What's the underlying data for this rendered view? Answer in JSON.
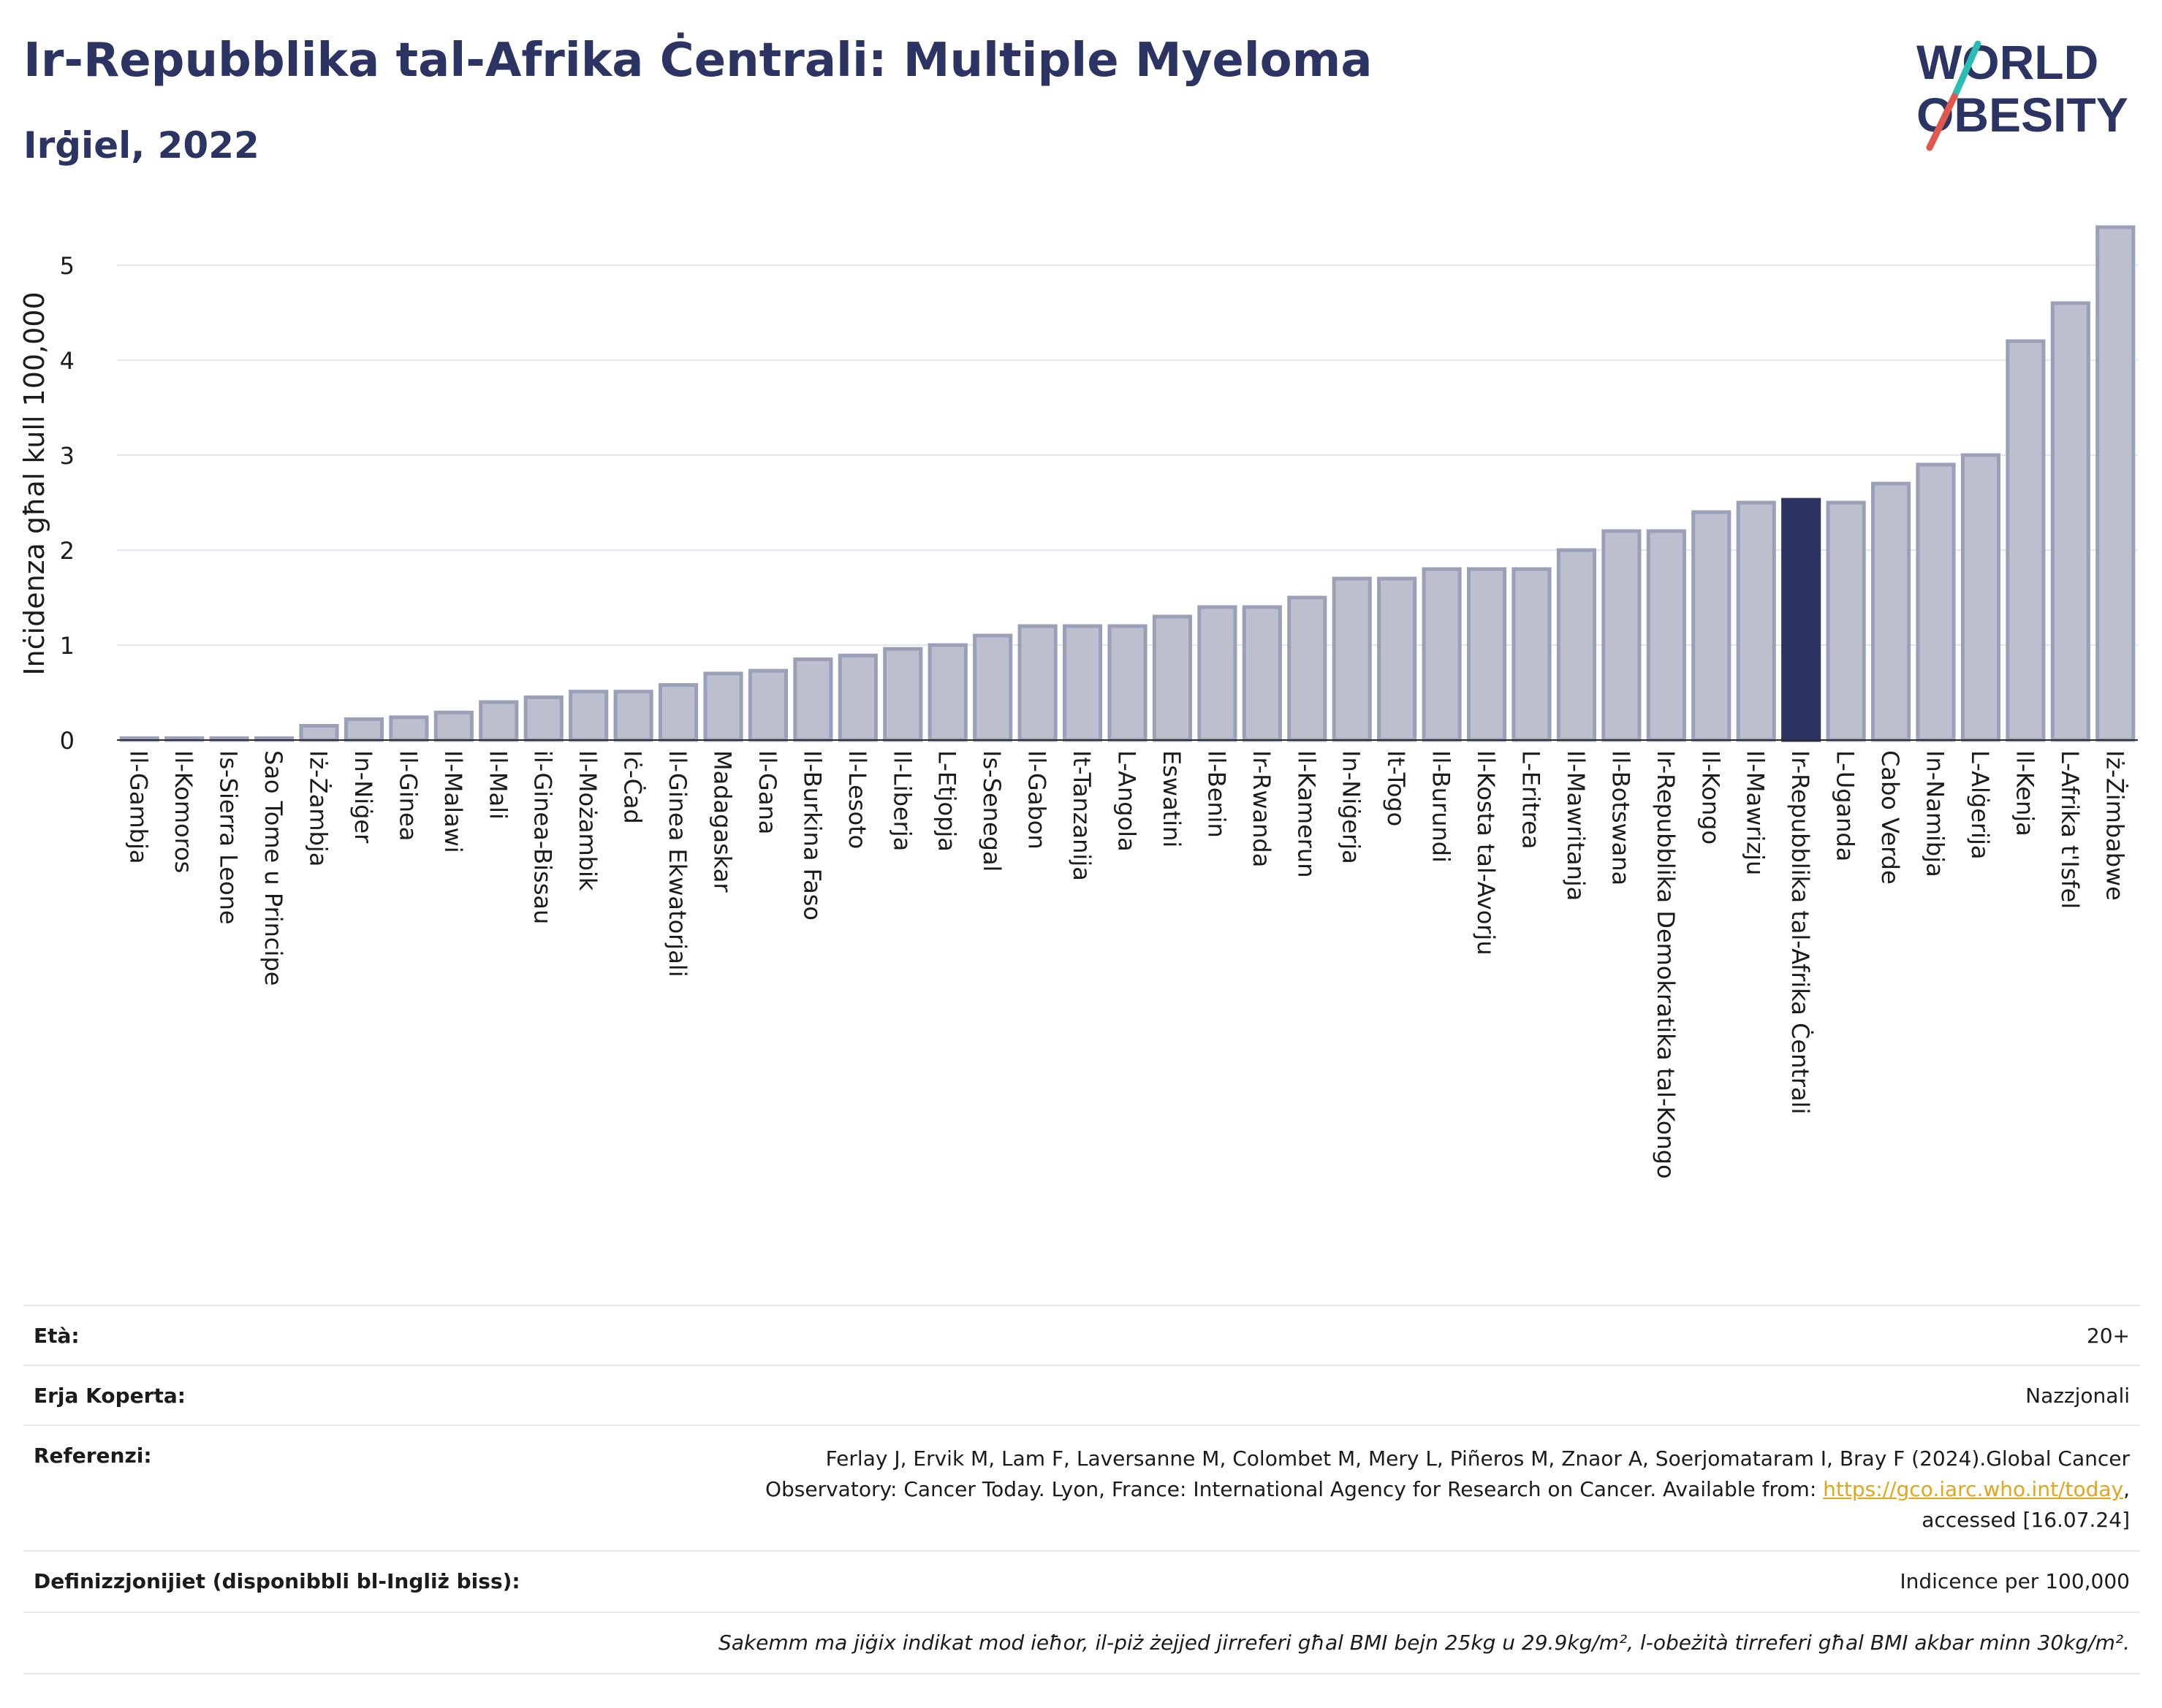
{
  "header": {
    "title": "Ir-Repubblika tal-Afrika Ċentrali: Multiple Myeloma",
    "subtitle": "Irġiel, 2022",
    "logo_line1": "WORLD",
    "logo_line2": "OBESITY"
  },
  "colors": {
    "title": "#2b3463",
    "bar_default": "#bcc0ce",
    "bar_border": "#9aa0b8",
    "bar_highlight": "#2b3463",
    "logo_teal": "#2bbdb5",
    "logo_red": "#e2574c",
    "link": "#e3a51a"
  },
  "chart_data": {
    "type": "bar",
    "title": "Ir-Repubblika tal-Afrika Ċentrali: Multiple Myeloma",
    "subtitle": "Irġiel, 2022",
    "ylabel": "Inċidenza għal kull 100,000",
    "xlabel": "",
    "ylim": [
      0,
      5.5
    ],
    "yticks": [
      0,
      1,
      2,
      3,
      4,
      5
    ],
    "grid": true,
    "highlight": "Ir-Repubblika tal-Afrika Ċentrali",
    "categories": [
      "Il-Gambja",
      "Il-Komoros",
      "Is-Sierra Leone",
      "Sao Tome u Principe",
      "Iż-Żambja",
      "In-Niġer",
      "Il-Ginea",
      "Il-Malawi",
      "Il-Mali",
      "il-Ginea-Bissau",
      "Il-Możambik",
      "Iċ-Ċad",
      "Il-Ginea Ekwatorjali",
      "Madagaskar",
      "Il-Gana",
      "Il-Burkina Faso",
      "Il-Lesoto",
      "Il-Liberja",
      "L-Etjopja",
      "Is-Senegal",
      "Il-Gabon",
      "It-Tanzanija",
      "L-Angola",
      "Eswatini",
      "Il-Benin",
      "Ir-Rwanda",
      "Il-Kamerun",
      "In-Niġerja",
      "It-Togo",
      "Il-Burundi",
      "Il-Kosta tal-Avorju",
      "L-Eritrea",
      "Il-Mawritanja",
      "Il-Botswana",
      "Ir-Repubblika Demokratika tal-Kongo",
      "Il-Kongo",
      "Il-Mawrizju",
      "Ir-Repubblika tal-Afrika Ċentrali",
      "L-Uganda",
      "Cabo Verde",
      "In-Namibja",
      "L-Alġerija",
      "Il-Kenja",
      "L-Afrika t'Isfel",
      "Iż-Żimbabwe"
    ],
    "values": [
      0.02,
      0.02,
      0.02,
      0.02,
      0.15,
      0.22,
      0.24,
      0.29,
      0.4,
      0.45,
      0.51,
      0.51,
      0.58,
      0.7,
      0.73,
      0.85,
      0.89,
      0.96,
      1.0,
      1.1,
      1.2,
      1.2,
      1.2,
      1.3,
      1.4,
      1.4,
      1.5,
      1.7,
      1.7,
      1.8,
      1.8,
      1.8,
      2.0,
      2.2,
      2.2,
      2.4,
      2.5,
      2.53,
      2.5,
      2.7,
      2.9,
      3.0,
      4.2,
      4.6,
      5.4
    ]
  },
  "info": {
    "age_label": "Età:",
    "age_value": "20+",
    "area_label": "Erja Koperta:",
    "area_value": "Nazzjonali",
    "ref_label": "Referenzi:",
    "ref_line1": "Ferlay J, Ervik M, Lam F, Laversanne M, Colombet M, Mery L, Piñeros M, Znaor A, Soerjomataram I, Bray F (2024).Global Cancer",
    "ref_line2": "Observatory: Cancer Today. Lyon, France: International Agency for Research on Cancer. Available from: ",
    "ref_link": "https://gco.iarc.who.int/today",
    "ref_line2_end": ",",
    "ref_line3": "accessed [16.07.24]",
    "def_label": "Definizzjonijiet (disponibbli bl-Ingliż biss):",
    "def_value": "Indicence per 100,000",
    "note": "Sakemm ma jiġix indikat mod ieħor, il-piż żejjed jirreferi għal BMI bejn 25kg u 29.9kg/m², l-obeżità tirreferi għal BMI akbar minn 30kg/m²."
  }
}
